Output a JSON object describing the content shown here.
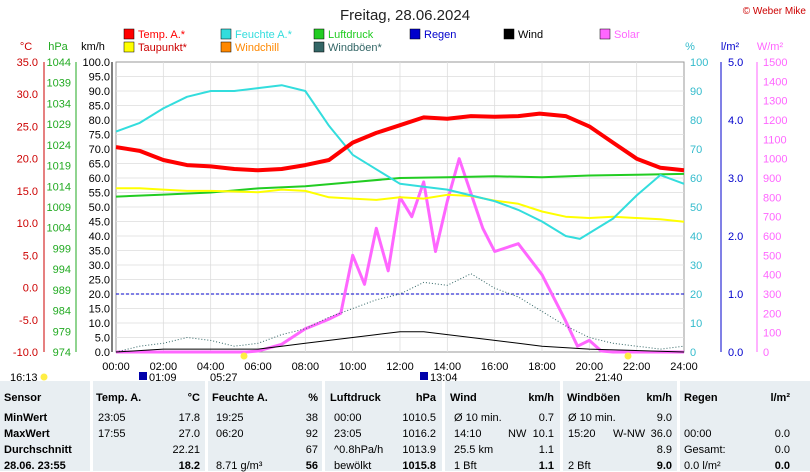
{
  "chart_data": {
    "type": "line",
    "title": "Freitag, 28.06.2024",
    "credit": "© Weber Mike",
    "legend": [
      {
        "name": "Temp. A.*",
        "color": "#ff0000"
      },
      {
        "name": "Feuchte A.*",
        "color": "#33dddd"
      },
      {
        "name": "Luftdruck",
        "color": "#22cc22"
      },
      {
        "name": "Regen",
        "color": "#0000cc"
      },
      {
        "name": "Wind",
        "color": "#000000"
      },
      {
        "name": "Solar",
        "color": "#ff66ff"
      },
      {
        "name": "Taupunkt*",
        "color": "#ffff00"
      },
      {
        "name": "Windchill",
        "color": "#ff8800"
      },
      {
        "name": "Windböen*",
        "color": "#336666"
      }
    ],
    "axes": {
      "temp": {
        "unit": "°C",
        "ticks": [
          "35.0",
          "30.0",
          "25.0",
          "20.0",
          "15.0",
          "10.0",
          "5.0",
          "0.0",
          "-5.0",
          "-10.0"
        ],
        "range": [
          -10,
          35
        ]
      },
      "pressure": {
        "unit": "hPa",
        "ticks": [
          "1044",
          "1039",
          "1034",
          "1029",
          "1024",
          "1019",
          "1014",
          "1009",
          "1004",
          "999",
          "994",
          "989",
          "984",
          "979",
          "974"
        ],
        "range": [
          974,
          1044
        ]
      },
      "wind": {
        "unit": "km/h",
        "ticks": [
          "100.0",
          "95.0",
          "90.0",
          "85.0",
          "80.0",
          "75.0",
          "70.0",
          "65.0",
          "60.0",
          "55.0",
          "50.0",
          "45.0",
          "40.0",
          "35.0",
          "30.0",
          "25.0",
          "20.0",
          "15.0",
          "10.0",
          "5.0",
          "0.0"
        ],
        "range": [
          0,
          100
        ]
      },
      "humidity": {
        "unit": "%",
        "ticks": [
          "100",
          "90",
          "80",
          "70",
          "60",
          "50",
          "40",
          "30",
          "20",
          "10",
          "0"
        ],
        "range": [
          0,
          100
        ]
      },
      "rain": {
        "unit": "l/m²",
        "ticks": [
          "5.0",
          "4.0",
          "3.0",
          "2.0",
          "1.0",
          "0.0"
        ],
        "range": [
          0,
          5
        ]
      },
      "solar": {
        "unit": "W/m²",
        "ticks": [
          "1500",
          "1400",
          "1300",
          "1200",
          "1100",
          "1000",
          "900",
          "800",
          "700",
          "600",
          "500",
          "400",
          "300",
          "200",
          "100",
          "0"
        ],
        "range": [
          0,
          1500
        ]
      },
      "x_ticks": [
        "00:00",
        "02:00",
        "04:00",
        "06:00",
        "08:00",
        "10:00",
        "12:00",
        "14:00",
        "16:00",
        "18:00",
        "20:00",
        "22:00",
        "24:00"
      ],
      "x_range_hours": [
        0,
        24
      ]
    },
    "sun_markers": {
      "sunrise": "05:27",
      "sunset": "21:40",
      "moonrise": "01:09",
      "moonset": "13:04",
      "left_time": "16:13"
    },
    "series": {
      "temperature": [
        [
          0,
          21.8
        ],
        [
          1,
          21.2
        ],
        [
          2,
          19.8
        ],
        [
          3,
          19.0
        ],
        [
          4,
          18.8
        ],
        [
          5,
          18.4
        ],
        [
          6,
          18.2
        ],
        [
          7,
          18.4
        ],
        [
          8,
          19.0
        ],
        [
          9,
          19.8
        ],
        [
          10,
          22.5
        ],
        [
          11,
          24.0
        ],
        [
          12,
          25.2
        ],
        [
          13,
          26.4
        ],
        [
          14,
          26.2
        ],
        [
          15,
          26.6
        ],
        [
          16,
          26.5
        ],
        [
          17,
          26.6
        ],
        [
          17.9,
          27.0
        ],
        [
          19,
          26.6
        ],
        [
          20,
          25.0
        ],
        [
          21,
          22.5
        ],
        [
          22,
          20.0
        ],
        [
          23,
          18.6
        ],
        [
          24,
          18.2
        ]
      ],
      "humidity": [
        [
          0,
          76
        ],
        [
          1,
          79
        ],
        [
          2,
          84
        ],
        [
          3,
          88
        ],
        [
          4,
          90
        ],
        [
          5,
          90
        ],
        [
          6,
          91
        ],
        [
          7,
          92
        ],
        [
          8,
          90
        ],
        [
          9,
          78
        ],
        [
          10,
          68
        ],
        [
          11,
          63
        ],
        [
          12,
          58
        ],
        [
          13,
          57
        ],
        [
          14,
          56
        ],
        [
          15,
          54
        ],
        [
          16,
          52
        ],
        [
          17,
          49
        ],
        [
          18,
          45
        ],
        [
          19,
          40
        ],
        [
          19.6,
          39
        ],
        [
          20,
          41
        ],
        [
          21,
          46
        ],
        [
          22,
          54
        ],
        [
          23,
          61
        ],
        [
          24,
          58
        ]
      ],
      "dewpoint": [
        [
          0,
          15.4
        ],
        [
          1,
          15.4
        ],
        [
          2,
          15.2
        ],
        [
          3,
          15.0
        ],
        [
          4,
          15.0
        ],
        [
          5,
          14.9
        ],
        [
          6,
          14.8
        ],
        [
          7,
          15.2
        ],
        [
          8,
          15.0
        ],
        [
          9,
          14.0
        ],
        [
          10,
          13.8
        ],
        [
          11,
          13.6
        ],
        [
          12,
          14.0
        ],
        [
          13,
          13.8
        ],
        [
          14,
          14.4
        ],
        [
          15,
          14.2
        ],
        [
          16,
          13.5
        ],
        [
          17,
          13.0
        ],
        [
          18,
          11.8
        ],
        [
          19,
          11.0
        ],
        [
          20,
          10.8
        ],
        [
          21,
          11.0
        ],
        [
          22,
          10.8
        ],
        [
          23,
          10.6
        ],
        [
          24,
          10.2
        ]
      ],
      "pressure": [
        [
          0,
          1011.5
        ],
        [
          2,
          1012
        ],
        [
          4,
          1012.5
        ],
        [
          6,
          1013.5
        ],
        [
          8,
          1014
        ],
        [
          10,
          1015
        ],
        [
          12,
          1016
        ],
        [
          14,
          1016.2
        ],
        [
          16,
          1016.4
        ],
        [
          18,
          1016.2
        ],
        [
          20,
          1016.6
        ],
        [
          22,
          1016.8
        ],
        [
          24,
          1017.0
        ]
      ],
      "solar": [
        [
          0,
          0
        ],
        [
          5.5,
          0
        ],
        [
          6,
          5
        ],
        [
          7,
          40
        ],
        [
          8,
          120
        ],
        [
          9,
          170
        ],
        [
          9.5,
          200
        ],
        [
          10,
          500
        ],
        [
          10.5,
          350
        ],
        [
          11,
          640
        ],
        [
          11.5,
          420
        ],
        [
          12,
          800
        ],
        [
          12.5,
          700
        ],
        [
          13,
          880
        ],
        [
          13.5,
          520
        ],
        [
          14,
          780
        ],
        [
          14.5,
          1000
        ],
        [
          15,
          820
        ],
        [
          15.5,
          640
        ],
        [
          16,
          520
        ],
        [
          17,
          560
        ],
        [
          18,
          400
        ],
        [
          19,
          160
        ],
        [
          19.5,
          30
        ],
        [
          20,
          60
        ],
        [
          20.5,
          5
        ],
        [
          21,
          0
        ],
        [
          24,
          0
        ]
      ],
      "windgust": [
        [
          0,
          0
        ],
        [
          1,
          2
        ],
        [
          2,
          3
        ],
        [
          3,
          5
        ],
        [
          4,
          4
        ],
        [
          5,
          2
        ],
        [
          6,
          3
        ],
        [
          7,
          6
        ],
        [
          8,
          8
        ],
        [
          9,
          12
        ],
        [
          10,
          15
        ],
        [
          11,
          18
        ],
        [
          12,
          20
        ],
        [
          13,
          24
        ],
        [
          14,
          23
        ],
        [
          15,
          27
        ],
        [
          16,
          22
        ],
        [
          17,
          19
        ],
        [
          18,
          14
        ],
        [
          19,
          9
        ],
        [
          20,
          5
        ],
        [
          21,
          3
        ],
        [
          22,
          2
        ],
        [
          23,
          1
        ],
        [
          24,
          2
        ]
      ],
      "wind": [
        [
          0,
          0
        ],
        [
          2,
          1
        ],
        [
          4,
          1
        ],
        [
          6,
          1
        ],
        [
          7,
          2
        ],
        [
          8,
          3
        ],
        [
          9,
          4
        ],
        [
          10,
          5
        ],
        [
          11,
          6
        ],
        [
          12,
          7
        ],
        [
          13,
          7
        ],
        [
          14,
          6
        ],
        [
          15,
          5
        ],
        [
          16,
          4
        ],
        [
          17,
          3
        ],
        [
          18,
          2
        ],
        [
          20,
          1
        ],
        [
          24,
          0
        ]
      ],
      "rain_line_mm": 1.0
    }
  },
  "stats": {
    "headers": {
      "sensor": "Sensor",
      "temp": "Temp. A.",
      "temp_unit": "°C",
      "hum": "Feuchte A.",
      "hum_unit": "%",
      "press": "Luftdruck",
      "press_unit": "hPa",
      "wind": "Wind",
      "wind_unit": "km/h",
      "gust": "Windböen",
      "gust_unit": "km/h",
      "rain": "Regen",
      "rain_unit": "l/m²"
    },
    "rows": [
      {
        "label": "MinWert",
        "temp_t": "23:05",
        "temp_v": "17.8",
        "hum_t": "19:25",
        "hum_v": "38",
        "press_t": "00:00",
        "press_v": "1010.5",
        "wind_l": "Ø 10 min.",
        "wind_v": "0.7",
        "gust_l": "Ø 10 min.",
        "gust_v": "9.0",
        "rain_l": "",
        "rain_v": ""
      },
      {
        "label": "MaxWert",
        "temp_t": "17:55",
        "temp_v": "27.0",
        "hum_t": "06:20",
        "hum_v": "92",
        "press_t": "23:05",
        "press_v": "1016.2",
        "wind_l": "14:10",
        "wind_m": "NW",
        "wind_v": "10.1",
        "gust_l": "15:20",
        "gust_m": "W-NW",
        "gust_v": "36.0",
        "rain_l": "00:00",
        "rain_v": "0.0"
      },
      {
        "label": "Durchschnitt",
        "temp_t": "",
        "temp_v": "22.21",
        "hum_t": "",
        "hum_v": "67",
        "press_t": "^0.8hPa/h",
        "press_v": "1013.9",
        "wind_l": "25.5 km",
        "wind_v": "1.1",
        "gust_l": "",
        "gust_v": "8.9",
        "rain_l": "Gesamt:",
        "rain_v": "0.0"
      },
      {
        "label": "28.06. 23:55",
        "temp_t": "",
        "temp_v": "18.2",
        "hum_t": "8.71 g/m³",
        "hum_v": "56",
        "press_t": "bewölkt",
        "press_v": "1015.8",
        "wind_l": "1 Bft",
        "wind_v": "1.1",
        "gust_l": "2 Bft",
        "gust_v": "9.0",
        "rain_l": "0.0 l/m²",
        "rain_v": "0.0"
      }
    ]
  }
}
